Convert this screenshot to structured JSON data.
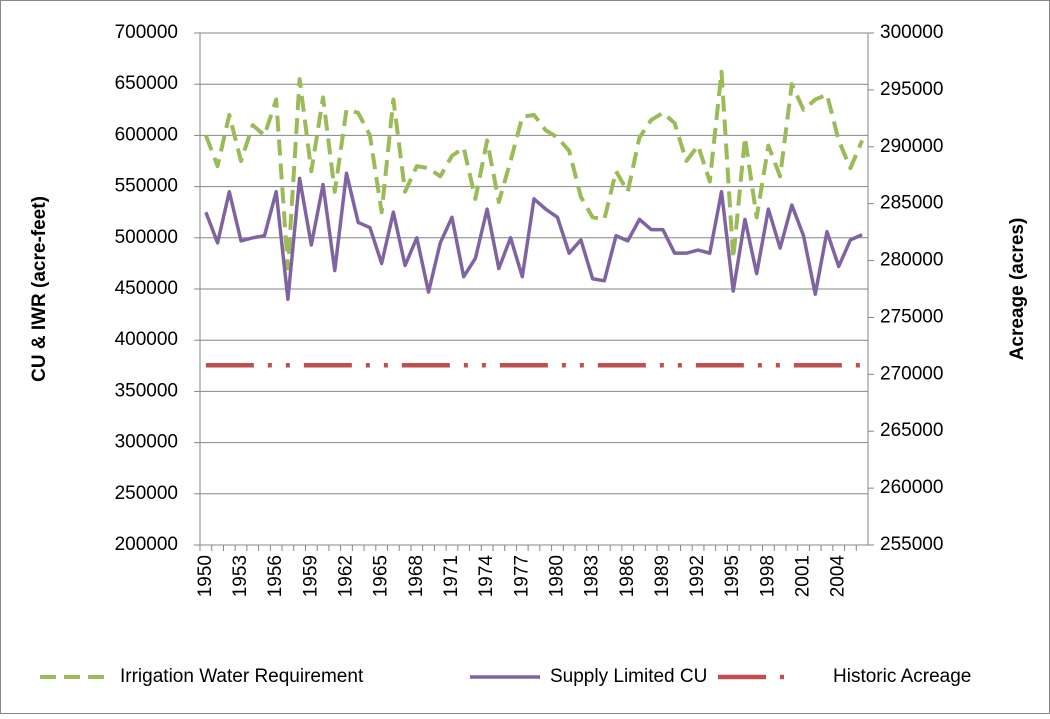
{
  "chart_data": {
    "type": "line",
    "y_label": "CU & IWR (acre-feet)",
    "y2_label": "Acreage (acres)",
    "categories": [
      "1950",
      null,
      null,
      "1953",
      null,
      null,
      "1956",
      null,
      null,
      "1959",
      null,
      null,
      "1962",
      null,
      null,
      "1965",
      null,
      null,
      "1968",
      null,
      null,
      "1971",
      null,
      null,
      "1974",
      null,
      null,
      "1977",
      null,
      null,
      "1980",
      null,
      null,
      "1983",
      null,
      null,
      "1986",
      null,
      null,
      "1989",
      null,
      null,
      "1992",
      null,
      null,
      "1995",
      null,
      null,
      "1998",
      null,
      null,
      "2001",
      null,
      null,
      "2004",
      null,
      null
    ],
    "series": [
      {
        "name": "Irrigation Water Requirement",
        "color": "#9bbb59",
        "dash": "dashed",
        "values": [
          600000,
          570000,
          620000,
          575000,
          610000,
          600000,
          635000,
          470000,
          655000,
          565000,
          637000,
          545000,
          625000,
          622000,
          600000,
          525000,
          635000,
          545000,
          570000,
          568000,
          560000,
          580000,
          588000,
          538000,
          595000,
          535000,
          575000,
          618000,
          620000,
          605000,
          598000,
          585000,
          540000,
          520000,
          518000,
          565000,
          545000,
          598000,
          615000,
          622000,
          612000,
          575000,
          590000,
          555000,
          662000,
          480000,
          598000,
          520000,
          590000,
          560000,
          650000,
          625000,
          635000,
          640000,
          595000,
          568000,
          595000
        ]
      },
      {
        "name": "Supply Limited CU",
        "color": "#8064a2",
        "dash": "solid",
        "values": [
          525000,
          495000,
          545000,
          497000,
          500000,
          502000,
          545000,
          440000,
          558000,
          493000,
          552000,
          468000,
          563000,
          515000,
          510000,
          475000,
          525000,
          473000,
          500000,
          447000,
          495000,
          520000,
          462000,
          480000,
          528000,
          470000,
          500000,
          462000,
          538000,
          528000,
          520000,
          485000,
          498000,
          460000,
          458000,
          502000,
          497000,
          518000,
          508000,
          508000,
          485000,
          485000,
          488000,
          485000,
          545000,
          448000,
          518000,
          465000,
          528000,
          490000,
          532000,
          502000,
          445000,
          506000,
          472000,
          498000,
          503000
        ]
      },
      {
        "name": "Historic Acreage",
        "color": "#c0504d",
        "dash": "dash-dot",
        "axis": "y2",
        "values": [
          270800,
          270800,
          270800,
          270800,
          270800,
          270800,
          270800,
          270800,
          270800,
          270800,
          270800,
          270800,
          270800,
          270800,
          270800,
          270800,
          270800,
          270800,
          270800,
          270800,
          270800,
          270800,
          270800,
          270800,
          270800,
          270800,
          270800,
          270800,
          270800,
          270800,
          270800,
          270800,
          270800,
          270800,
          270800,
          270800,
          270800,
          270800,
          270800,
          270800,
          270800,
          270800,
          270800,
          270800,
          270800,
          270800,
          270800,
          270800,
          270800,
          270800,
          270800,
          270800,
          270800,
          270800,
          270800,
          270800,
          270800
        ]
      }
    ],
    "ylim": [
      200000,
      700000
    ],
    "yticks": [
      200000,
      250000,
      300000,
      350000,
      400000,
      450000,
      500000,
      550000,
      600000,
      650000,
      700000
    ],
    "y2lim": [
      255000,
      300000
    ],
    "y2ticks": [
      255000,
      260000,
      265000,
      270000,
      275000,
      280000,
      285000,
      290000,
      295000,
      300000
    ],
    "grid": true,
    "legend": "bottom"
  }
}
